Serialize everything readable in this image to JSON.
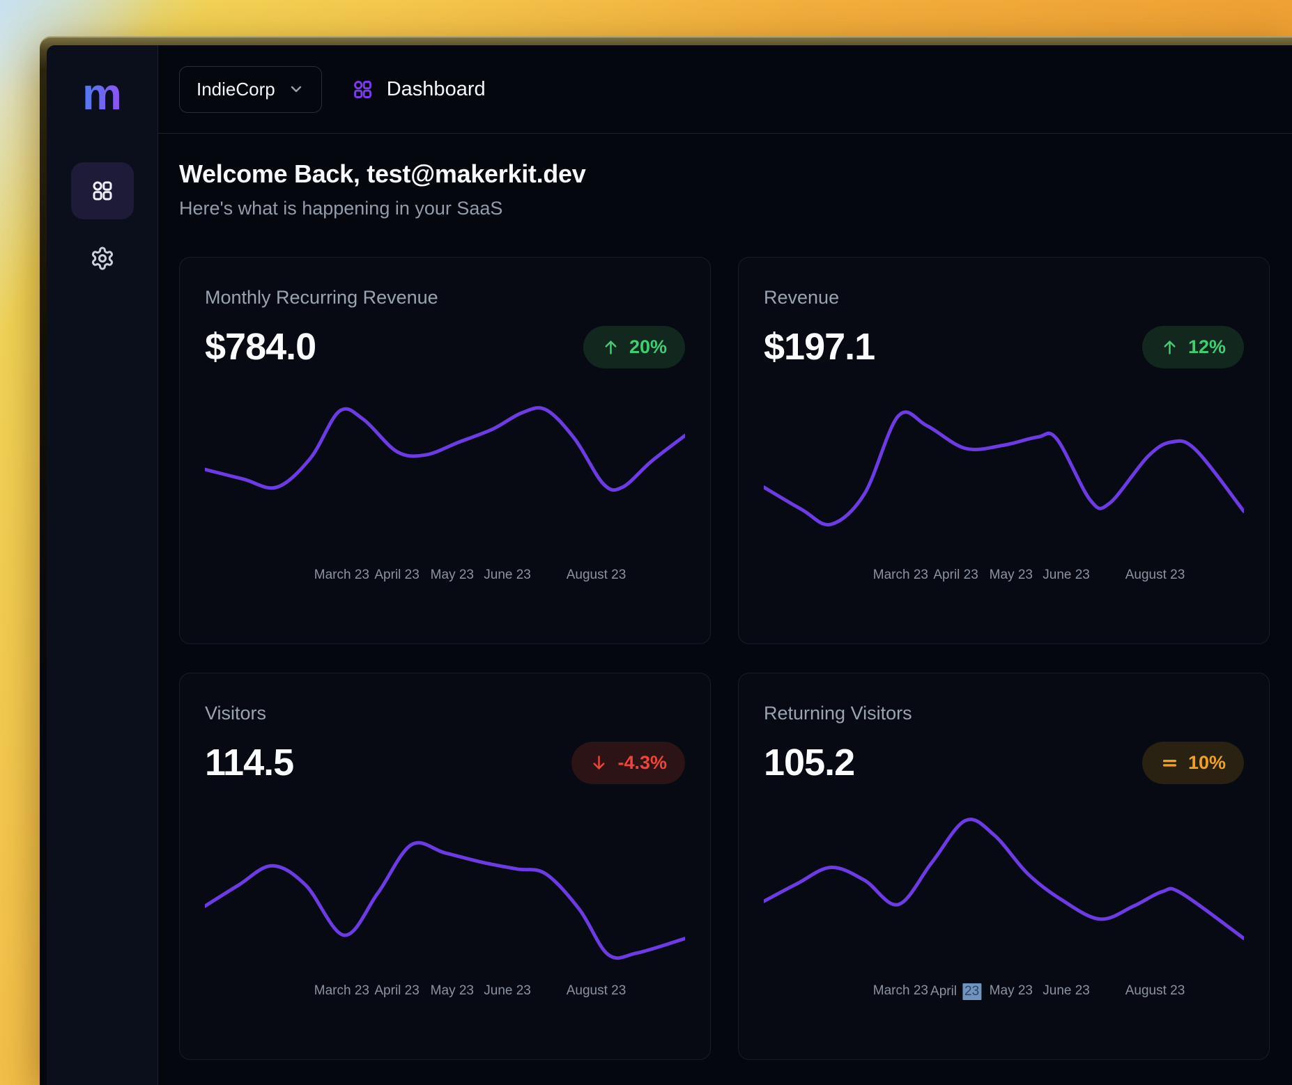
{
  "theme": {
    "accent_purple": "#7c3aed",
    "chart_line_color": "#6d3be6",
    "positive_green": "#3fcf71",
    "negative_red": "#f04438",
    "neutral_amber": "#f0a11f",
    "selection_blue": "#6f94bf",
    "logo_gradient_start": "#4f7cf0",
    "logo_gradient_end": "#8a55f2"
  },
  "sidebar": {
    "logo": "m",
    "items": [
      {
        "name": "dashboard",
        "icon": "grid-icon",
        "active": true
      },
      {
        "name": "settings",
        "icon": "gear-icon",
        "active": false
      }
    ]
  },
  "header": {
    "workspace": {
      "label": "IndieCorp",
      "icon": "chevron-down-icon"
    },
    "page": {
      "icon": "grid-icon",
      "title": "Dashboard"
    }
  },
  "welcome": {
    "title": "Welcome Back, test@makerkit.dev",
    "subtitle": "Here's what is happening in your SaaS"
  },
  "x_axis": {
    "labels": [
      "March 23",
      "April 23",
      "May 23",
      "June 23",
      "August 23"
    ]
  },
  "x_axis_returning": {
    "first": "March 23",
    "april_prefix": "April",
    "april_selected": "23",
    "third": "May 23",
    "fourth": "June 23",
    "fifth": "August 23"
  },
  "cards": [
    {
      "title": "Monthly Recurring Revenue",
      "value": "$784.0",
      "badge": {
        "text": "20%",
        "trend": "up",
        "icon": "arrow-up-icon",
        "color": "green"
      }
    },
    {
      "title": "Revenue",
      "value": "$197.1",
      "badge": {
        "text": "12%",
        "trend": "up",
        "icon": "arrow-up-icon",
        "color": "green"
      }
    },
    {
      "title": "Visitors",
      "value": "114.5",
      "badge": {
        "text": "-4.3%",
        "trend": "down",
        "icon": "arrow-down-icon",
        "color": "red"
      }
    },
    {
      "title": "Returning Visitors",
      "value": "105.2",
      "badge": {
        "text": "10%",
        "trend": "flat",
        "icon": "equals-icon",
        "color": "amber"
      }
    }
  ],
  "chart_data": [
    {
      "id": "monthly-recurring-revenue",
      "type": "line",
      "title": "Monthly Recurring Revenue",
      "headline_value": "$784.0",
      "x_tick_labels": [
        "March 23",
        "April 23",
        "May 23",
        "June 23",
        "August 23"
      ],
      "y_axis_shown": false,
      "points_units": "percent-of-plot [x, height]",
      "points": [
        [
          0,
          53
        ],
        [
          8,
          47
        ],
        [
          15,
          42
        ],
        [
          22,
          60
        ],
        [
          28,
          89
        ],
        [
          33,
          84
        ],
        [
          40,
          64
        ],
        [
          46,
          62
        ],
        [
          53,
          70
        ],
        [
          60,
          78
        ],
        [
          66,
          88
        ],
        [
          71,
          90
        ],
        [
          77,
          72
        ],
        [
          83,
          44
        ],
        [
          87,
          42
        ],
        [
          93,
          58
        ],
        [
          100,
          74
        ]
      ]
    },
    {
      "id": "revenue",
      "type": "line",
      "title": "Revenue",
      "headline_value": "$197.1",
      "x_tick_labels": [
        "March 23",
        "April 23",
        "May 23",
        "June 23",
        "August 23"
      ],
      "y_axis_shown": false,
      "points_units": "percent-of-plot [x, height]",
      "points": [
        [
          0,
          42
        ],
        [
          8,
          28
        ],
        [
          14,
          19
        ],
        [
          21,
          38
        ],
        [
          28,
          86
        ],
        [
          34,
          80
        ],
        [
          42,
          66
        ],
        [
          50,
          68
        ],
        [
          57,
          73
        ],
        [
          61,
          72
        ],
        [
          68,
          34
        ],
        [
          72,
          32
        ],
        [
          80,
          61
        ],
        [
          85,
          70
        ],
        [
          90,
          65
        ],
        [
          100,
          27
        ]
      ]
    },
    {
      "id": "visitors",
      "type": "line",
      "title": "Visitors",
      "headline_value": "114.5",
      "x_tick_labels": [
        "March 23",
        "April 23",
        "May 23",
        "June 23",
        "August 23"
      ],
      "y_axis_shown": false,
      "points_units": "percent-of-plot [x, height]",
      "points": [
        [
          0,
          40
        ],
        [
          7,
          53
        ],
        [
          14,
          65
        ],
        [
          21,
          53
        ],
        [
          29,
          22
        ],
        [
          36,
          48
        ],
        [
          43,
          78
        ],
        [
          50,
          73
        ],
        [
          58,
          67
        ],
        [
          65,
          63
        ],
        [
          71,
          60
        ],
        [
          78,
          38
        ],
        [
          84,
          10
        ],
        [
          90,
          11
        ],
        [
          100,
          20
        ]
      ]
    },
    {
      "id": "returning-visitors",
      "type": "line",
      "title": "Returning Visitors",
      "headline_value": "105.2",
      "x_tick_labels": [
        "March 23",
        "April 23",
        "May 23",
        "June 23",
        "August 23"
      ],
      "y_axis_shown": false,
      "points_units": "percent-of-plot [x, height]",
      "points": [
        [
          0,
          43
        ],
        [
          7,
          54
        ],
        [
          14,
          64
        ],
        [
          21,
          56
        ],
        [
          28,
          41
        ],
        [
          35,
          67
        ],
        [
          42,
          93
        ],
        [
          48,
          84
        ],
        [
          55,
          60
        ],
        [
          62,
          44
        ],
        [
          70,
          32
        ],
        [
          77,
          40
        ],
        [
          83,
          49
        ],
        [
          87,
          48
        ],
        [
          100,
          20
        ]
      ]
    }
  ]
}
